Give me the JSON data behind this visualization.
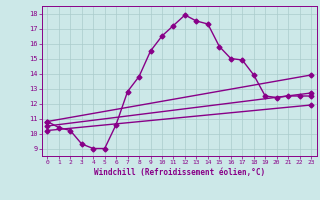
{
  "xlabel": "Windchill (Refroidissement éolien,°C)",
  "bg_color": "#cce8e8",
  "line_color": "#880088",
  "xlim": [
    -0.5,
    23.5
  ],
  "ylim": [
    8.5,
    18.5
  ],
  "xticks": [
    0,
    1,
    2,
    3,
    4,
    5,
    6,
    7,
    8,
    9,
    10,
    11,
    12,
    13,
    14,
    15,
    16,
    17,
    18,
    19,
    20,
    21,
    22,
    23
  ],
  "yticks": [
    9,
    10,
    11,
    12,
    13,
    14,
    15,
    16,
    17,
    18
  ],
  "grid_color": "#aacccc",
  "curve_x": [
    0,
    1,
    2,
    3,
    4,
    5,
    6,
    7,
    8,
    9,
    10,
    11,
    12,
    13,
    14,
    15,
    16,
    17,
    18,
    19,
    20,
    21,
    22,
    23
  ],
  "curve_y": [
    10.8,
    10.4,
    10.2,
    9.3,
    9.0,
    9.0,
    10.6,
    12.8,
    13.8,
    15.5,
    16.5,
    17.2,
    17.9,
    17.5,
    17.3,
    15.8,
    15.0,
    14.9,
    13.9,
    12.5,
    12.4,
    12.5,
    12.5,
    12.5
  ],
  "line2_x": [
    0,
    23
  ],
  "line2_y": [
    10.8,
    13.9
  ],
  "line3_x": [
    0,
    23
  ],
  "line3_y": [
    10.5,
    12.7
  ],
  "line4_x": [
    0,
    23
  ],
  "line4_y": [
    10.2,
    11.9
  ],
  "marker": "D",
  "markersize": 2.5,
  "linewidth": 1.0
}
